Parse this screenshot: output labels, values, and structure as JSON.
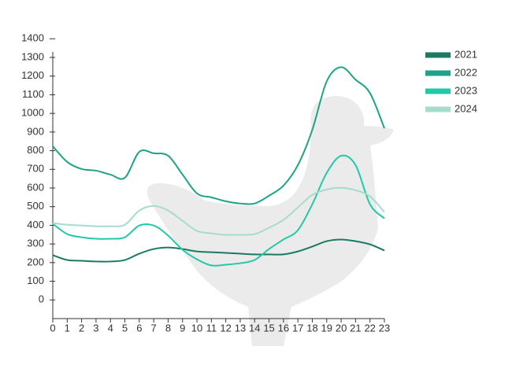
{
  "chart_data": {
    "type": "line",
    "x": [
      0,
      1,
      2,
      3,
      4,
      5,
      6,
      7,
      8,
      9,
      10,
      11,
      12,
      13,
      14,
      15,
      16,
      17,
      18,
      19,
      20,
      21,
      22,
      23
    ],
    "xlim": [
      0,
      23
    ],
    "xticks": [
      0,
      1,
      2,
      3,
      4,
      5,
      6,
      7,
      8,
      9,
      10,
      11,
      12,
      13,
      14,
      15,
      16,
      17,
      18,
      19,
      20,
      21,
      22,
      23
    ],
    "ylim": [
      -100,
      1400
    ],
    "yticks": [
      0,
      100,
      200,
      300,
      400,
      500,
      600,
      700,
      800,
      900,
      1000,
      1100,
      1200,
      1300,
      1400
    ],
    "legend": "right",
    "series": [
      {
        "name": "2021",
        "color": "#1a7a63",
        "values": [
          240,
          214,
          210,
          206,
          206,
          214,
          248,
          273,
          281,
          273,
          260,
          256,
          252,
          248,
          244,
          244,
          244,
          260,
          286,
          315,
          324,
          315,
          298,
          265
        ]
      },
      {
        "name": "2022",
        "color": "#1fa386",
        "values": [
          824,
          740,
          702,
          693,
          672,
          655,
          794,
          786,
          773,
          672,
          571,
          550,
          529,
          517,
          517,
          559,
          613,
          723,
          912,
          1172,
          1248,
          1181,
          1109,
          920
        ]
      },
      {
        "name": "2023",
        "color": "#22c9a8",
        "values": [
          408,
          353,
          336,
          328,
          328,
          336,
          399,
          399,
          345,
          269,
          218,
          185,
          189,
          197,
          214,
          273,
          324,
          374,
          513,
          681,
          773,
          723,
          513,
          437
        ]
      },
      {
        "name": "2024",
        "color": "#a6dccd",
        "values": [
          412,
          403,
          399,
          395,
          395,
          403,
          479,
          504,
          479,
          424,
          370,
          357,
          349,
          349,
          353,
          387,
          429,
          496,
          563,
          592,
          601,
          588,
          555,
          471
        ]
      }
    ]
  }
}
